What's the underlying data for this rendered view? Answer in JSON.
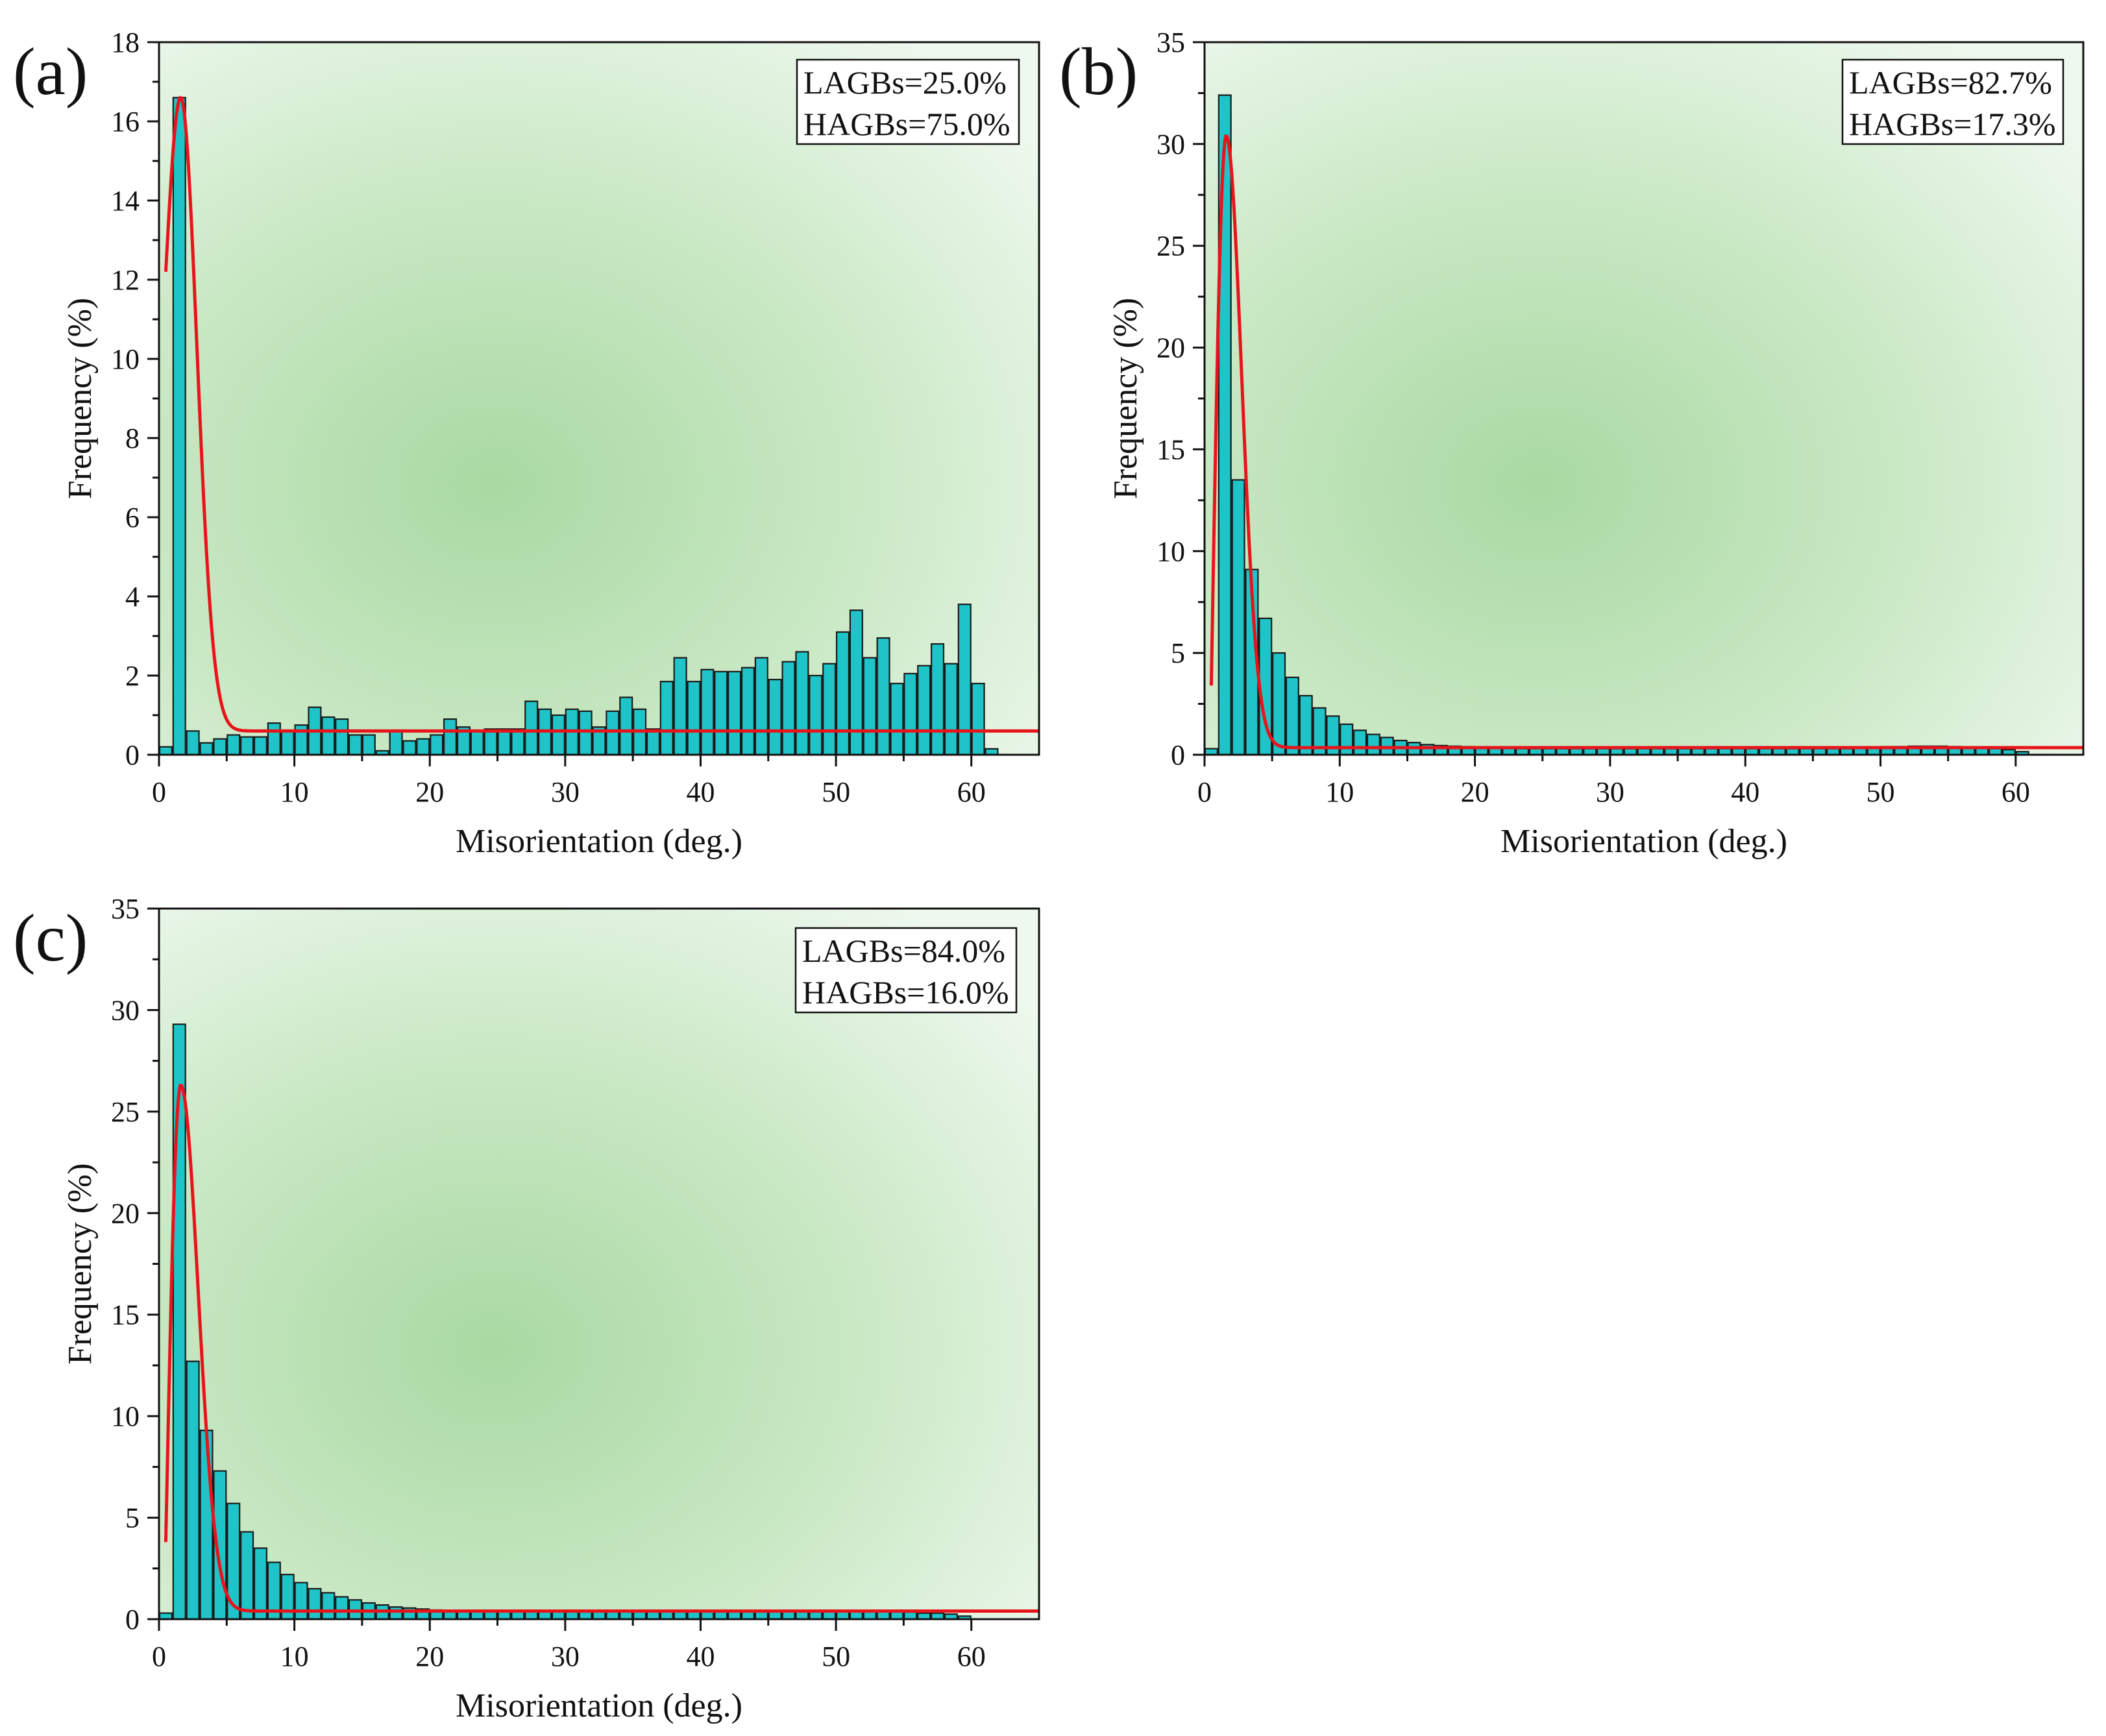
{
  "chart_data": [
    {
      "type": "bar",
      "panel_label": "(a)",
      "xlabel": "Misorientation (deg.)",
      "ylabel": "Frequency (%)",
      "xlim": [
        0,
        65
      ],
      "ylim": [
        0,
        18
      ],
      "xticks": [
        0,
        10,
        20,
        30,
        40,
        50,
        60
      ],
      "yticks": [
        0,
        2,
        4,
        6,
        8,
        10,
        12,
        14,
        16,
        18
      ],
      "bin_width": 1,
      "bin_start": 0,
      "values": [
        0.2,
        16.6,
        0.6,
        0.3,
        0.4,
        0.5,
        0.45,
        0.45,
        0.8,
        0.6,
        0.75,
        1.2,
        0.95,
        0.9,
        0.5,
        0.5,
        0.1,
        0.6,
        0.35,
        0.4,
        0.5,
        0.9,
        0.7,
        0.6,
        0.65,
        0.65,
        0.65,
        1.35,
        1.15,
        1.0,
        1.15,
        1.1,
        0.7,
        1.1,
        1.45,
        1.15,
        0.65,
        1.85,
        2.45,
        1.85,
        2.15,
        2.1,
        2.1,
        2.2,
        2.45,
        1.9,
        2.35,
        2.6,
        2.0,
        2.3,
        3.1,
        3.65,
        2.45,
        2.95,
        1.8,
        2.05,
        2.25,
        2.8,
        2.3,
        3.8,
        1.8,
        0.15
      ],
      "fit_line": {
        "peak_x": 1.6,
        "peak_y": 16.6,
        "sigma": 1.2,
        "baseline": 0.6,
        "x_start": 0.5,
        "x_end": 65,
        "start_y": 12.2,
        "color": "#e8141b"
      },
      "legend": [
        "LAGBs=25.0%",
        "HAGBs=75.0%"
      ]
    },
    {
      "type": "bar",
      "panel_label": "(b)",
      "xlabel": "Misorientation (deg.)",
      "ylabel": "Frequency (%)",
      "xlim": [
        0,
        65
      ],
      "ylim": [
        0,
        35
      ],
      "xticks": [
        0,
        10,
        20,
        30,
        40,
        50,
        60
      ],
      "yticks": [
        0,
        5,
        10,
        15,
        20,
        25,
        30,
        35
      ],
      "bin_width": 1,
      "bin_start": 0,
      "values": [
        0.3,
        32.4,
        13.5,
        9.1,
        6.7,
        5.0,
        3.8,
        2.9,
        2.3,
        1.9,
        1.5,
        1.2,
        1.0,
        0.85,
        0.7,
        0.6,
        0.5,
        0.45,
        0.42,
        0.4,
        0.35,
        0.33,
        0.32,
        0.3,
        0.3,
        0.3,
        0.3,
        0.3,
        0.3,
        0.3,
        0.3,
        0.3,
        0.3,
        0.3,
        0.3,
        0.3,
        0.3,
        0.3,
        0.3,
        0.3,
        0.3,
        0.3,
        0.3,
        0.3,
        0.3,
        0.3,
        0.3,
        0.3,
        0.32,
        0.35,
        0.4,
        0.4,
        0.42,
        0.42,
        0.42,
        0.4,
        0.38,
        0.35,
        0.3,
        0.25,
        0.15
      ],
      "fit_line": {
        "peak_x": 1.6,
        "peak_y": 30.4,
        "sigma": 1.15,
        "baseline": 0.35,
        "x_start": 0.5,
        "x_end": 65,
        "start_y": 3.4,
        "color": "#e8141b"
      },
      "legend": [
        "LAGBs=82.7%",
        "HAGBs=17.3%"
      ]
    },
    {
      "type": "bar",
      "panel_label": "(c)",
      "xlabel": "Misorientation (deg.)",
      "ylabel": "Frequency (%)",
      "xlim": [
        0,
        65
      ],
      "ylim": [
        0,
        35
      ],
      "xticks": [
        0,
        10,
        20,
        30,
        40,
        50,
        60
      ],
      "yticks": [
        0,
        5,
        10,
        15,
        20,
        25,
        30,
        35
      ],
      "bin_width": 1,
      "bin_start": 0,
      "values": [
        0.3,
        29.3,
        12.7,
        9.3,
        7.3,
        5.7,
        4.3,
        3.5,
        2.8,
        2.2,
        1.8,
        1.5,
        1.3,
        1.1,
        0.95,
        0.8,
        0.7,
        0.6,
        0.55,
        0.5,
        0.45,
        0.42,
        0.4,
        0.4,
        0.4,
        0.4,
        0.4,
        0.4,
        0.4,
        0.4,
        0.4,
        0.4,
        0.4,
        0.4,
        0.4,
        0.4,
        0.4,
        0.4,
        0.4,
        0.4,
        0.4,
        0.4,
        0.4,
        0.4,
        0.4,
        0.4,
        0.4,
        0.4,
        0.4,
        0.4,
        0.4,
        0.4,
        0.4,
        0.4,
        0.4,
        0.35,
        0.3,
        0.3,
        0.25,
        0.15
      ],
      "fit_line": {
        "peak_x": 1.6,
        "peak_y": 26.3,
        "sigma": 1.3,
        "baseline": 0.4,
        "x_start": 0.5,
        "x_end": 65,
        "start_y": 3.8,
        "color": "#e8141b"
      },
      "legend": [
        "LAGBs=84.0%",
        "HAGBs=16.0%"
      ]
    }
  ],
  "colors": {
    "bar_fill": "#1fc4c8",
    "bar_stroke": "#1a1a1a",
    "fit_line": "#e8141b",
    "bg_center": "#a9d9a3",
    "bg_edge": "#eef8ee"
  }
}
